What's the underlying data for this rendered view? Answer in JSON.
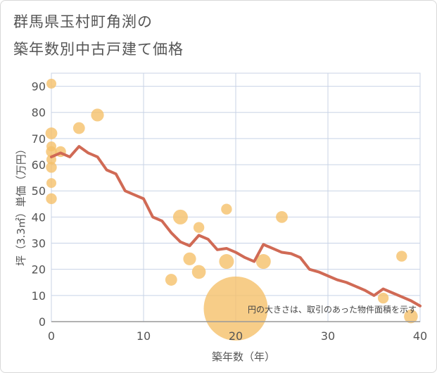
{
  "title_line1": "群馬県玉村町角渕の",
  "title_line2": "築年数別中古戸建て価格",
  "chart_data": {
    "type": "scatter",
    "xlabel": "築年数（年）",
    "ylabel": "坪（3.3㎡）単価（万円）",
    "xlim": [
      0,
      40
    ],
    "ylim": [
      0,
      95
    ],
    "xticks": [
      0,
      10,
      20,
      30,
      40
    ],
    "yticks": [
      0,
      10,
      20,
      30,
      40,
      50,
      60,
      70,
      80,
      90
    ],
    "grid": true,
    "annotation": "円の大きさは、取引のあった物件面積を示す",
    "colors": {
      "bubble": "#f5c06a",
      "line": "#d06a55",
      "grid": "#c8d3e6",
      "axis_text": "#555555"
    },
    "scatter": [
      {
        "x": 0,
        "y": 91,
        "size": 1
      },
      {
        "x": 0,
        "y": 72,
        "size": 1.2
      },
      {
        "x": 0,
        "y": 67,
        "size": 1
      },
      {
        "x": 0,
        "y": 65,
        "size": 1.1
      },
      {
        "x": 0,
        "y": 62,
        "size": 1
      },
      {
        "x": 0,
        "y": 59,
        "size": 1.1
      },
      {
        "x": 0,
        "y": 53,
        "size": 1
      },
      {
        "x": 0,
        "y": 47,
        "size": 1.1
      },
      {
        "x": 1,
        "y": 65,
        "size": 1.1
      },
      {
        "x": 3,
        "y": 74,
        "size": 1.2
      },
      {
        "x": 5,
        "y": 79,
        "size": 1.3
      },
      {
        "x": 13,
        "y": 16,
        "size": 1.2
      },
      {
        "x": 14,
        "y": 40,
        "size": 1.5
      },
      {
        "x": 15,
        "y": 24,
        "size": 1.3
      },
      {
        "x": 16,
        "y": 36,
        "size": 1.1
      },
      {
        "x": 16,
        "y": 19,
        "size": 1.4
      },
      {
        "x": 19,
        "y": 43,
        "size": 1.1
      },
      {
        "x": 19,
        "y": 23,
        "size": 1.5
      },
      {
        "x": 20,
        "y": 5,
        "size": 6.5
      },
      {
        "x": 23,
        "y": 23,
        "size": 1.5
      },
      {
        "x": 25,
        "y": 40,
        "size": 1.2
      },
      {
        "x": 36,
        "y": 9,
        "size": 1.1
      },
      {
        "x": 38,
        "y": 25,
        "size": 1.1
      },
      {
        "x": 39,
        "y": 2,
        "size": 1.4
      }
    ],
    "line": {
      "x": [
        0,
        1,
        2,
        3,
        4,
        5,
        6,
        7,
        8,
        9,
        10,
        11,
        12,
        13,
        14,
        15,
        16,
        17,
        18,
        19,
        20,
        21,
        22,
        23,
        24,
        25,
        26,
        27,
        28,
        29,
        30,
        31,
        32,
        33,
        34,
        35,
        36,
        37,
        38,
        39,
        40
      ],
      "y": [
        63,
        64.5,
        63,
        67,
        64.5,
        63,
        58,
        56.5,
        50,
        48.5,
        47,
        40,
        38.5,
        34,
        30.5,
        29,
        33,
        31.5,
        27.5,
        28,
        26.5,
        24.5,
        23,
        29.5,
        28,
        26.5,
        26,
        24.5,
        20,
        19,
        17.5,
        16,
        15,
        13.5,
        12,
        10,
        12.5,
        11,
        9.5,
        8,
        6
      ]
    }
  }
}
